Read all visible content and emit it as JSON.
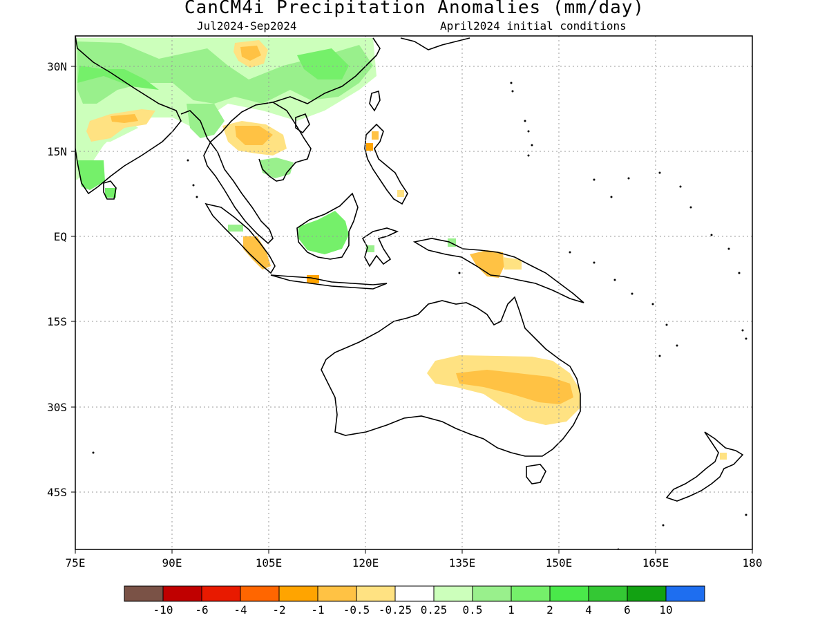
{
  "title": "CanCM4i Precipitation Anomalies (mm/day)",
  "subtitle_left": "Jul2024-Sep2024",
  "subtitle_right": "April2024 initial conditions",
  "axes": {
    "lon_ticks": [
      "75E",
      "90E",
      "105E",
      "120E",
      "135E",
      "150E",
      "165E",
      "180"
    ],
    "lat_ticks": [
      "30N",
      "15N",
      "EQ",
      "15S",
      "30S",
      "45S"
    ],
    "lon_range": [
      75,
      180
    ],
    "lat_range": [
      -55,
      35
    ],
    "grid": "dotted"
  },
  "colorbar": {
    "labels": [
      "-10",
      "-6",
      "-4",
      "-2",
      "-1",
      "-0.5",
      "-0.25",
      "0.25",
      "0.5",
      "1",
      "2",
      "4",
      "6",
      "10"
    ],
    "colors": [
      "#7a5246",
      "#c00000",
      "#e81a00",
      "#ff6600",
      "#ffa400",
      "#ffc244",
      "#ffe282",
      "#ffffff",
      "#ccffbb",
      "#99f08c",
      "#75f06a",
      "#4ae94a",
      "#34c834",
      "#12a212",
      "#1e6ef0"
    ]
  },
  "colors": {
    "dry_light": "#ffe282",
    "dry_med": "#ffc244",
    "dry_strong": "#ffa400",
    "wet_light": "#ccffbb",
    "wet_med": "#99f08c",
    "wet_strong": "#75f06a"
  }
}
